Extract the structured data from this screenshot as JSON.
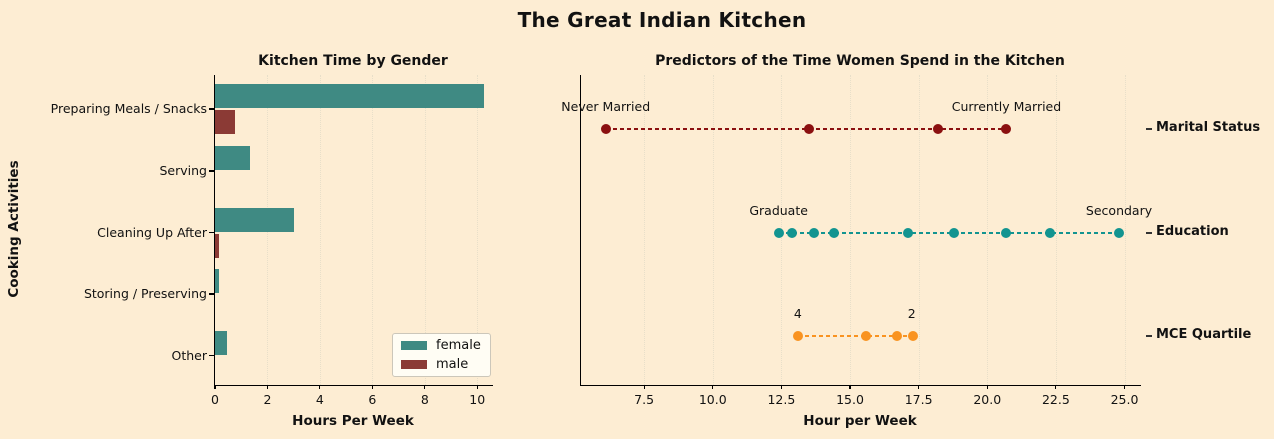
{
  "main_title": "The Great Indian Kitchen",
  "colors": {
    "background": "#fdedd3",
    "female_bar": "#3f8a83",
    "male_bar": "#8b3a35",
    "marital_dots": "#8b1010",
    "education_dots": "#129490",
    "mce_dots": "#f99320",
    "grid": "#e8dfc9",
    "text": "#121212"
  },
  "chart_data": [
    {
      "type": "bar",
      "orientation": "horizontal",
      "title": "Kitchen Time by Gender",
      "xlabel": "Hours Per Week",
      "ylabel": "Cooking Activities",
      "categories": [
        "Preparing Meals / Snacks",
        "Serving",
        "Cleaning Up After",
        "Storing / Preserving",
        "Other"
      ],
      "series": [
        {
          "name": "female",
          "color": "#3f8a83",
          "values": [
            10.25,
            1.35,
            3.0,
            0.15,
            0.45
          ]
        },
        {
          "name": "male",
          "color": "#8b3a35",
          "values": [
            0.75,
            0.0,
            0.15,
            0.0,
            0.0
          ]
        }
      ],
      "xticks": [
        0,
        2,
        4,
        6,
        8,
        10
      ],
      "xtick_labels": [
        "0",
        "2",
        "4",
        "6",
        "8",
        "10"
      ],
      "xlim": [
        0,
        10.6
      ],
      "grid": true,
      "legend": {
        "position": "lower right",
        "items": [
          {
            "label": "female",
            "color": "#3f8a83"
          },
          {
            "label": "male",
            "color": "#8b3a35"
          }
        ]
      }
    },
    {
      "type": "scatter",
      "subtype": "dot-plot",
      "title": "Predictors of the Time Women Spend in the Kitchen",
      "xlabel": "Hour per Week",
      "xticks": [
        7.5,
        10.0,
        12.5,
        15.0,
        17.5,
        20.0,
        22.5,
        25.0
      ],
      "xtick_labels": [
        "7.5",
        "10.0",
        "12.5",
        "15.0",
        "17.5",
        "20.0",
        "22.5",
        "25.0"
      ],
      "xlim": [
        5.2,
        25.6
      ],
      "grid": true,
      "rows": [
        {
          "label": "Marital Status",
          "color": "#8b1010",
          "values": [
            6.1,
            13.5,
            18.2,
            20.7
          ],
          "annotations": [
            {
              "text": "Never Married",
              "x": 6.1
            },
            {
              "text": "Currently Married",
              "x": 20.7
            }
          ]
        },
        {
          "label": "Education",
          "color": "#129490",
          "values": [
            12.4,
            12.9,
            13.7,
            14.4,
            17.1,
            18.8,
            20.7,
            22.3,
            24.8
          ],
          "annotations": [
            {
              "text": "Graduate",
              "x": 12.4
            },
            {
              "text": "Secondary",
              "x": 24.8
            }
          ]
        },
        {
          "label": "MCE Quartile",
          "color": "#f99320",
          "values": [
            13.1,
            15.6,
            16.7,
            17.3
          ],
          "annotations": [
            {
              "text": "4",
              "x": 13.1
            },
            {
              "text": "2",
              "x": 17.25
            }
          ]
        }
      ]
    }
  ]
}
